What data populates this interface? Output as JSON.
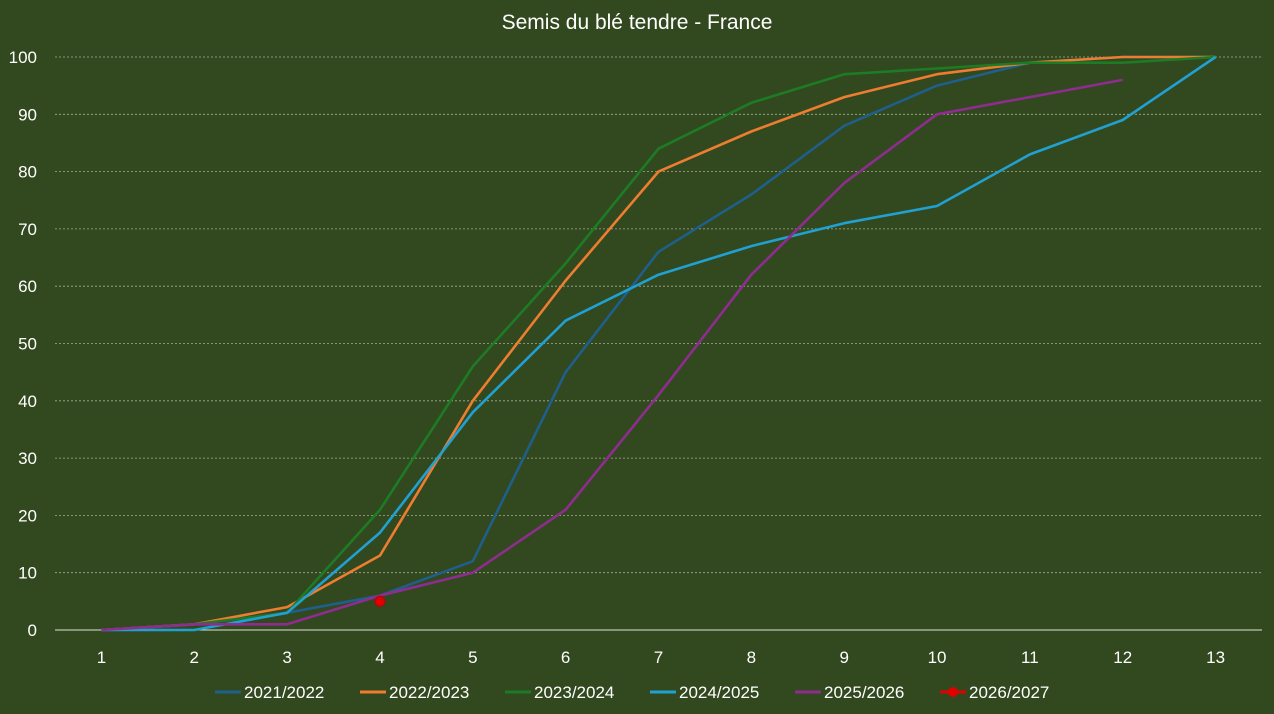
{
  "chart_data": {
    "type": "line",
    "title": "Semis du blé tendre - France",
    "xlabel": "",
    "ylabel": "",
    "x": [
      1,
      2,
      3,
      4,
      5,
      6,
      7,
      8,
      9,
      10,
      11,
      12,
      13
    ],
    "ylim": [
      0,
      100
    ],
    "yticks": [
      0,
      10,
      20,
      30,
      40,
      50,
      60,
      70,
      80,
      90,
      100
    ],
    "grid": "horizontal",
    "legend_position": "bottom",
    "series": [
      {
        "name": "2021/2022",
        "color": "#1f5f8b",
        "values": [
          0,
          1,
          3,
          6,
          12,
          45,
          66,
          76,
          88,
          95,
          99,
          100,
          100
        ]
      },
      {
        "name": "2022/2023",
        "color": "#ed7d31",
        "values": [
          0,
          1,
          4,
          13,
          40,
          61,
          80,
          87,
          93,
          97,
          99,
          100,
          100
        ]
      },
      {
        "name": "2023/2024",
        "color": "#1e7b25",
        "values": [
          0,
          1,
          3,
          21,
          46,
          64,
          84,
          92,
          97,
          98,
          99,
          99,
          100
        ]
      },
      {
        "name": "2024/2025",
        "color": "#21a0d2",
        "values": [
          0,
          0,
          3,
          17,
          38,
          54,
          62,
          67,
          71,
          74,
          83,
          89,
          100
        ]
      },
      {
        "name": "2025/2026",
        "color": "#8e2d8f",
        "values": [
          0,
          1,
          1,
          6,
          10,
          21,
          41,
          62,
          78,
          90,
          93,
          96,
          null
        ]
      },
      {
        "name": "2026/2027",
        "color": "#e00000",
        "marker": "circle",
        "values": [
          null,
          null,
          null,
          5,
          null,
          null,
          null,
          null,
          null,
          null,
          null,
          null,
          null
        ]
      }
    ]
  }
}
